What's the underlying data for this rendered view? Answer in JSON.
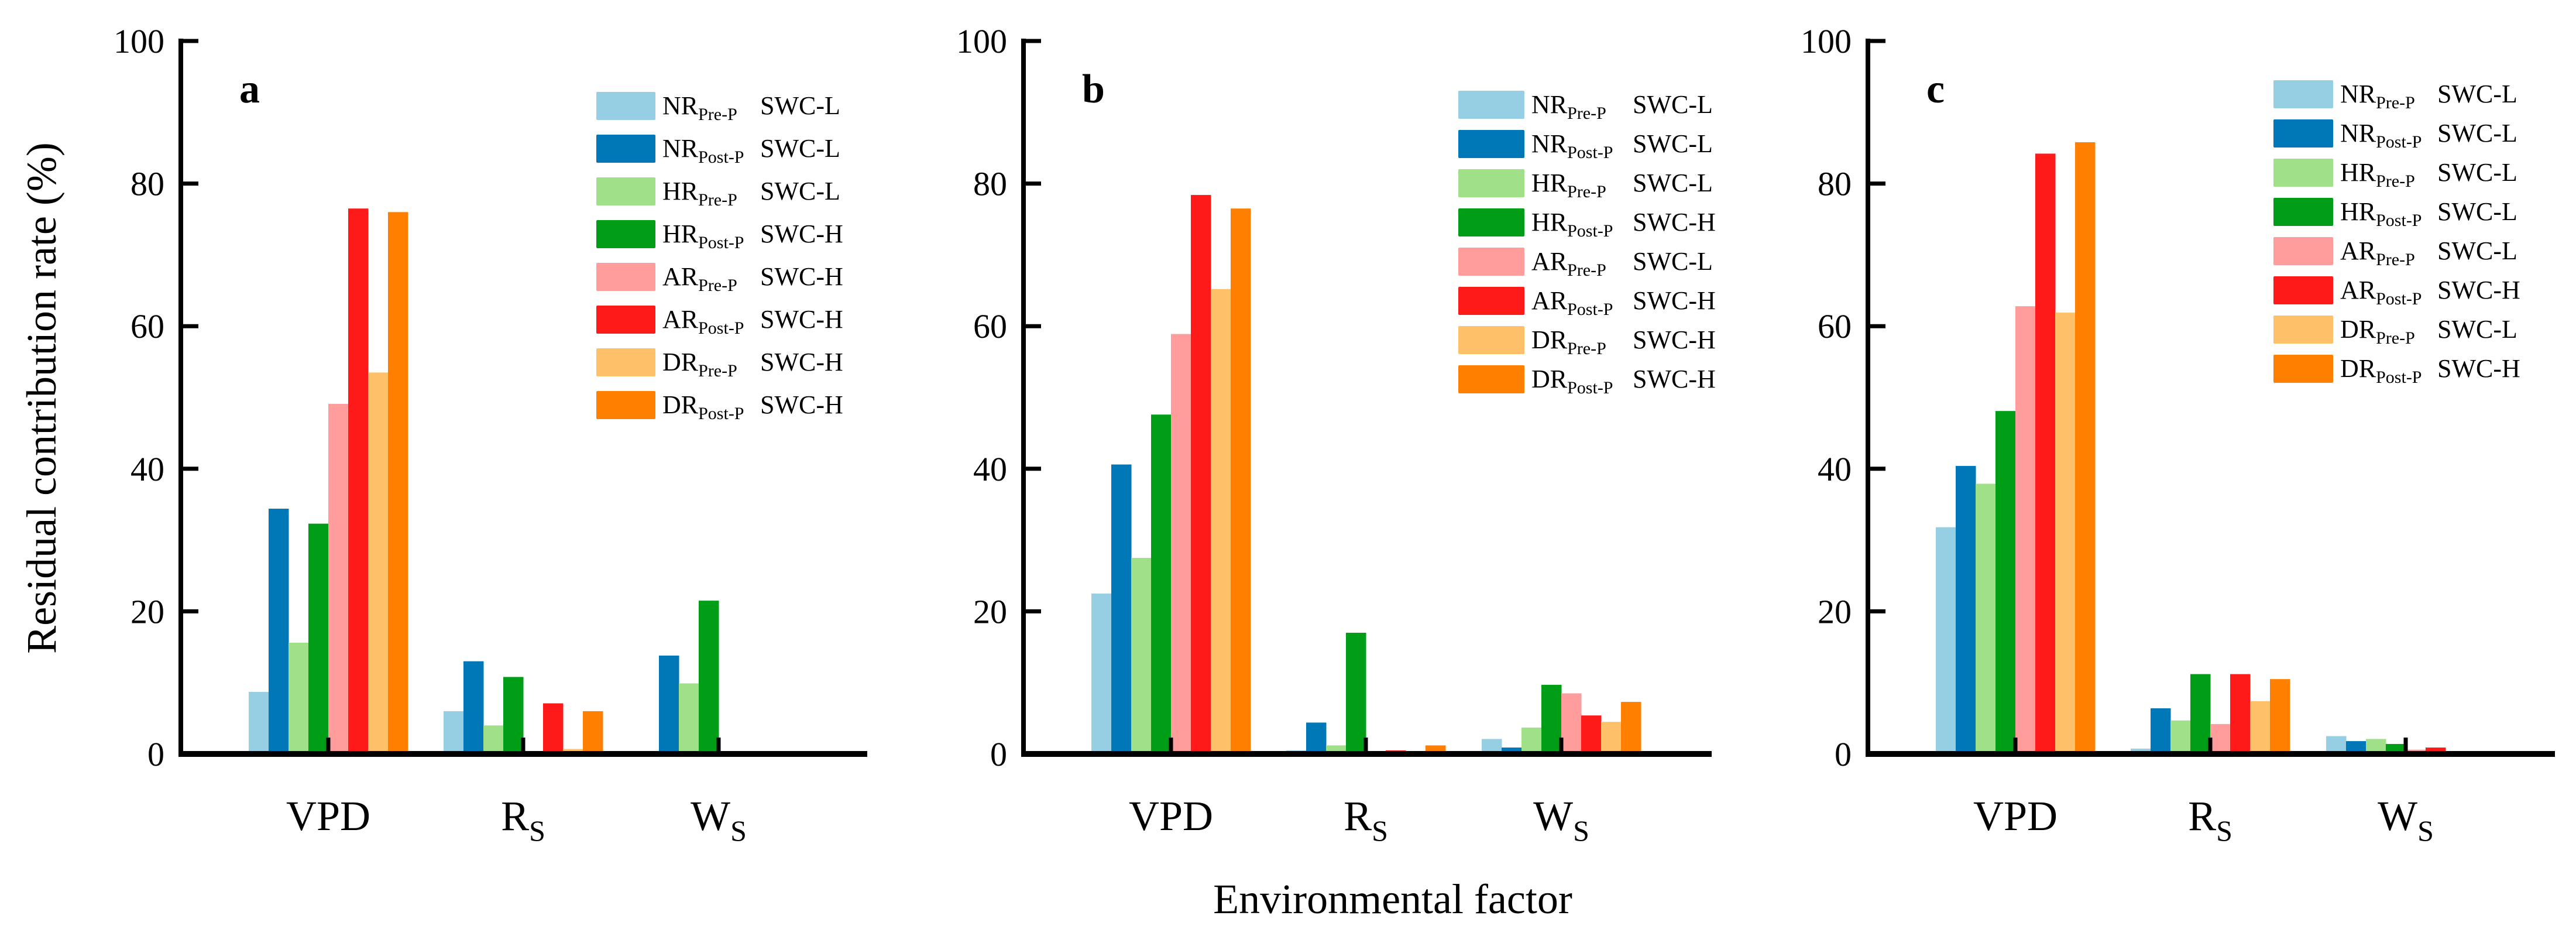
{
  "chart_data": [
    {
      "type": "bar",
      "panel_label": "a",
      "categories": [
        "VPD",
        "R_S",
        "W_S"
      ],
      "ylim": [
        0,
        100
      ],
      "yticks": [
        0,
        20,
        40,
        60,
        80,
        100
      ],
      "series": [
        {
          "name": "NR",
          "sub": "Pre-P",
          "swc": "SWC-L",
          "color": "#96CEE4",
          "values": [
            8.7,
            6.0,
            0.4
          ]
        },
        {
          "name": "NR",
          "sub": "Post-P",
          "swc": "SWC-L",
          "color": "#0077B6",
          "values": [
            34.4,
            13.0,
            13.8
          ]
        },
        {
          "name": "HR",
          "sub": "Pre-P",
          "swc": "SWC-L",
          "color": "#A0E088",
          "values": [
            15.6,
            4.0,
            9.9
          ]
        },
        {
          "name": "HR",
          "sub": "Post-P",
          "swc": "SWC-H",
          "color": "#009E17",
          "values": [
            32.3,
            10.8,
            21.5
          ]
        },
        {
          "name": "AR",
          "sub": "Pre-P",
          "swc": "SWC-H",
          "color": "#FF9C9C",
          "values": [
            49.1,
            0.0,
            0.2
          ]
        },
        {
          "name": "AR",
          "sub": "Post-P",
          "swc": "SWC-H",
          "color": "#FF1A1A",
          "values": [
            76.5,
            7.1,
            0.0
          ]
        },
        {
          "name": "DR",
          "sub": "Pre-P",
          "swc": "SWC-H",
          "color": "#FFC06A",
          "values": [
            53.5,
            0.7,
            0.2
          ]
        },
        {
          "name": "DR",
          "sub": "Post-P",
          "swc": "SWC-H",
          "color": "#FF8000",
          "values": [
            76.0,
            6.0,
            0.2
          ]
        }
      ]
    },
    {
      "type": "bar",
      "panel_label": "b",
      "categories": [
        "VPD",
        "R_S",
        "W_S"
      ],
      "ylim": [
        0,
        100
      ],
      "yticks": [
        0,
        20,
        40,
        60,
        80,
        100
      ],
      "series": [
        {
          "name": "NR",
          "sub": "Pre-P",
          "swc": "SWC-L",
          "color": "#96CEE4",
          "values": [
            22.5,
            0.5,
            2.1
          ]
        },
        {
          "name": "NR",
          "sub": "Post-P",
          "swc": "SWC-L",
          "color": "#0077B6",
          "values": [
            40.6,
            4.4,
            0.9
          ]
        },
        {
          "name": "HR",
          "sub": "Pre-P",
          "swc": "SWC-L",
          "color": "#A0E088",
          "values": [
            27.5,
            1.2,
            3.7
          ]
        },
        {
          "name": "HR",
          "sub": "Post-P",
          "swc": "SWC-H",
          "color": "#009E17",
          "values": [
            47.6,
            17.0,
            9.7
          ]
        },
        {
          "name": "AR",
          "sub": "Pre-P",
          "swc": "SWC-L",
          "color": "#FF9C9C",
          "values": [
            58.9,
            0.0,
            8.5
          ]
        },
        {
          "name": "AR",
          "sub": "Post-P",
          "swc": "SWC-H",
          "color": "#FF1A1A",
          "values": [
            78.4,
            0.5,
            5.4
          ]
        },
        {
          "name": "DR",
          "sub": "Pre-P",
          "swc": "SWC-H",
          "color": "#FFC06A",
          "values": [
            65.2,
            0.3,
            4.5
          ]
        },
        {
          "name": "DR",
          "sub": "Post-P",
          "swc": "SWC-H",
          "color": "#FF8000",
          "values": [
            76.5,
            1.2,
            7.3
          ]
        }
      ]
    },
    {
      "type": "bar",
      "panel_label": "c",
      "categories": [
        "VPD",
        "R_S",
        "W_S"
      ],
      "ylim": [
        0,
        100
      ],
      "yticks": [
        0,
        20,
        40,
        60,
        80,
        100
      ],
      "series": [
        {
          "name": "NR",
          "sub": "Pre-P",
          "swc": "SWC-L",
          "color": "#96CEE4",
          "values": [
            31.8,
            0.75,
            2.5
          ]
        },
        {
          "name": "NR",
          "sub": "Post-P",
          "swc": "SWC-L",
          "color": "#0077B6",
          "values": [
            40.4,
            6.4,
            1.8
          ]
        },
        {
          "name": "HR",
          "sub": "Pre-P",
          "swc": "SWC-L",
          "color": "#A0E088",
          "values": [
            37.9,
            4.7,
            2.1
          ]
        },
        {
          "name": "HR",
          "sub": "Post-P",
          "swc": "SWC-L",
          "color": "#009E17",
          "values": [
            48.1,
            11.2,
            1.4
          ]
        },
        {
          "name": "AR",
          "sub": "Pre-P",
          "swc": "SWC-L",
          "color": "#FF9C9C",
          "values": [
            62.8,
            4.2,
            0.6
          ]
        },
        {
          "name": "AR",
          "sub": "Post-P",
          "swc": "SWC-H",
          "color": "#FF1A1A",
          "values": [
            84.2,
            11.2,
            0.9
          ]
        },
        {
          "name": "DR",
          "sub": "Pre-P",
          "swc": "SWC-L",
          "color": "#FFC06A",
          "values": [
            61.9,
            7.4,
            0.1
          ]
        },
        {
          "name": "DR",
          "sub": "Post-P",
          "swc": "SWC-H",
          "color": "#FF8000",
          "values": [
            85.8,
            10.5,
            0.1
          ]
        }
      ]
    }
  ],
  "ylabel": "Residual contribution rate (%)",
  "xlabel": "Environmental factor"
}
